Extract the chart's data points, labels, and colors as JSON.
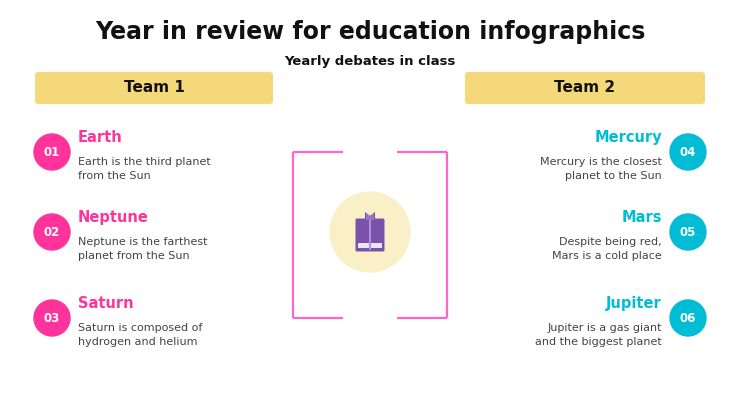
{
  "title": "Year in review for education infographics",
  "subtitle": "Yearly debates in class",
  "team1_label": "Team 1",
  "team2_label": "Team 2",
  "background_color": "#ffffff",
  "title_color": "#111111",
  "subtitle_color": "#111111",
  "team_bg_color": "#f5d87a",
  "team_text_color": "#111111",
  "left_items": [
    {
      "num": "01",
      "title": "Earth",
      "desc": "Earth is the third planet\nfrom the Sun"
    },
    {
      "num": "02",
      "title": "Neptune",
      "desc": "Neptune is the farthest\nplanet from the Sun"
    },
    {
      "num": "03",
      "title": "Saturn",
      "desc": "Saturn is composed of\nhydrogen and helium"
    }
  ],
  "right_items": [
    {
      "num": "04",
      "title": "Mercury",
      "desc": "Mercury is the closest\nplanet to the Sun"
    },
    {
      "num": "05",
      "title": "Mars",
      "desc": "Despite being red,\nMars is a cold place"
    },
    {
      "num": "06",
      "title": "Jupiter",
      "desc": "Jupiter is a gas giant\nand the biggest planet"
    }
  ],
  "left_circle_color": "#ff3399",
  "right_circle_color": "#00bcd4",
  "left_title_color": "#ff3399",
  "right_title_color": "#00bcd4",
  "left_num_color": "#ffffff",
  "right_num_color": "#ffffff",
  "desc_color": "#444444",
  "line_color": "#ff66cc",
  "center_circle_color": "#faf0c8",
  "book_body_color": "#7b52ab",
  "book_bookmark_color": "#f5c842",
  "book_spine_color": "#f5e6a3",
  "book_page_color": "#e8e0f0",
  "figw": 7.4,
  "figh": 4.16,
  "dpi": 100
}
